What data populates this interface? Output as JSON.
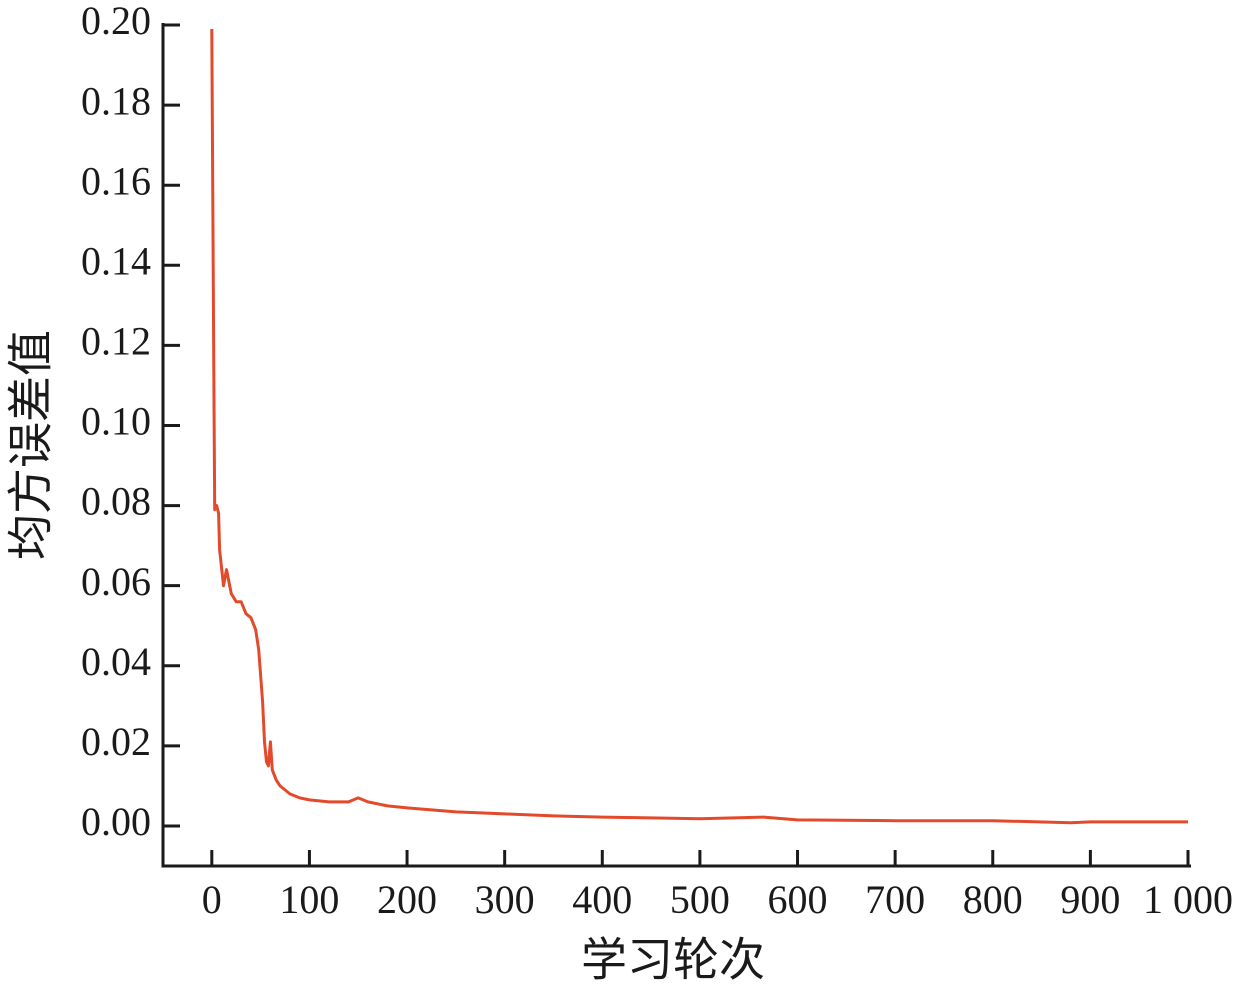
{
  "chart_data": {
    "type": "line",
    "x_label": "学习轮次",
    "y_label": "均方误差值",
    "x": [
      0,
      2,
      3,
      5,
      7,
      8,
      12,
      15,
      20,
      25,
      30,
      35,
      40,
      45,
      48,
      52,
      54,
      56,
      58,
      60,
      62,
      66,
      70,
      75,
      80,
      90,
      100,
      120,
      140,
      150,
      160,
      180,
      200,
      250,
      300,
      350,
      400,
      450,
      500,
      565,
      600,
      700,
      800,
      880,
      900,
      1000
    ],
    "series": [
      {
        "name": "均方误差值",
        "color": "#e34a2b",
        "values": [
          0.199,
          0.114,
          0.079,
          0.08,
          0.078,
          0.069,
          0.06,
          0.064,
          0.058,
          0.056,
          0.056,
          0.053,
          0.052,
          0.049,
          0.044,
          0.031,
          0.021,
          0.016,
          0.015,
          0.021,
          0.014,
          0.0115,
          0.01,
          0.009,
          0.008,
          0.007,
          0.0065,
          0.006,
          0.006,
          0.007,
          0.006,
          0.005,
          0.0045,
          0.0035,
          0.003,
          0.0025,
          0.0022,
          0.002,
          0.0018,
          0.0022,
          0.0015,
          0.0013,
          0.0013,
          0.0008,
          0.001,
          0.001
        ]
      }
    ],
    "xlim": [
      -50,
      1000
    ],
    "ylim": [
      -0.01,
      0.2
    ],
    "xticks": [
      0,
      100,
      200,
      300,
      400,
      500,
      600,
      700,
      800,
      900,
      {
        "value": 1000,
        "label": "1 000"
      }
    ],
    "yticks": [
      {
        "value": 0,
        "label": "0.00"
      },
      0.02,
      0.04,
      0.06,
      0.08,
      {
        "value": 0.1,
        "label": "0.10"
      },
      0.12,
      0.14,
      0.16,
      0.18,
      {
        "value": 0.2,
        "label": "0.20"
      }
    ],
    "grid": false
  }
}
